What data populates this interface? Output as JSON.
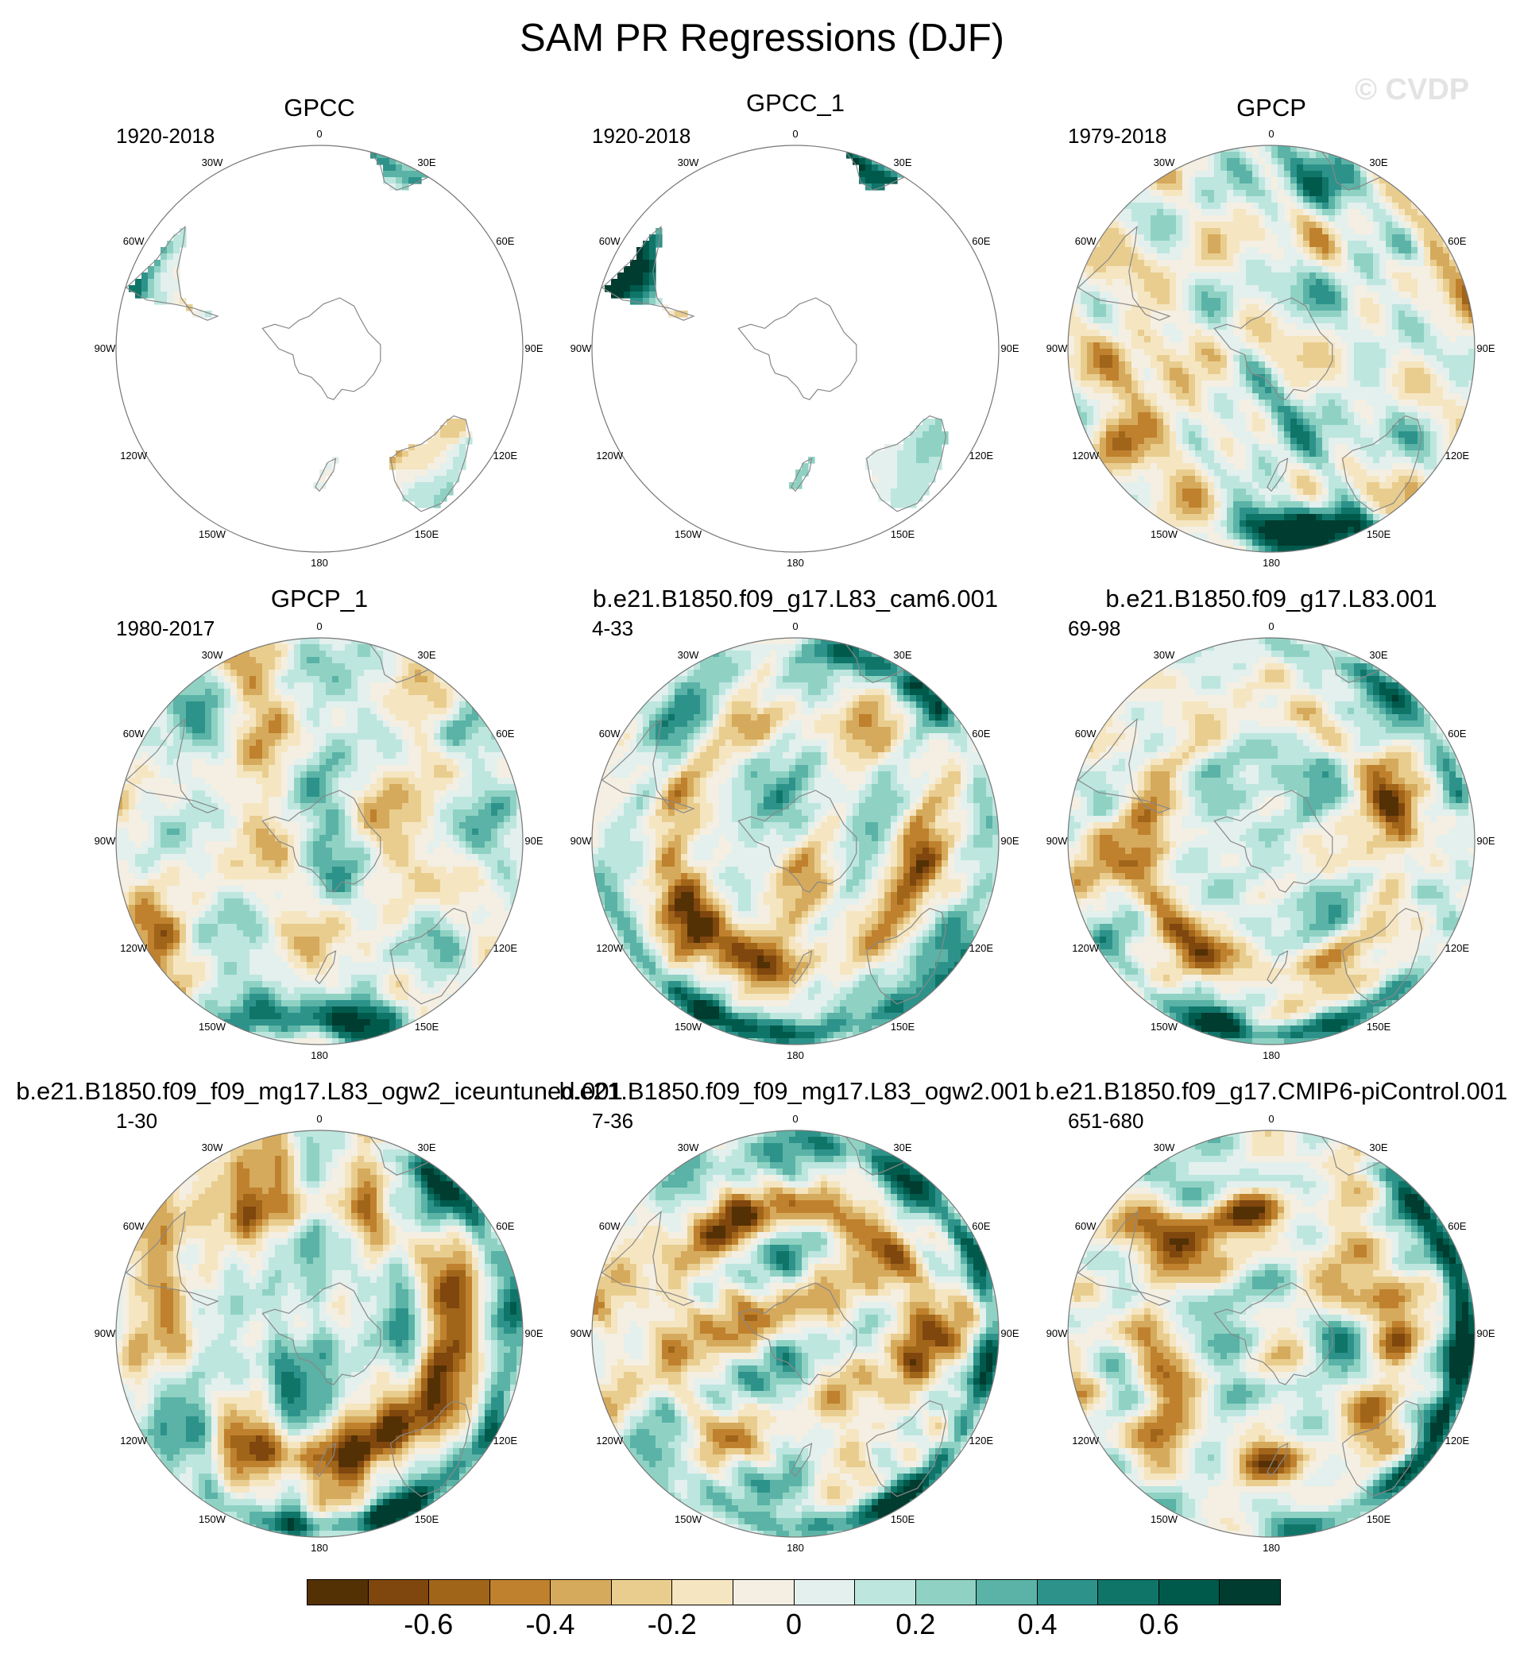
{
  "title": "SAM PR Regressions (DJF)",
  "watermark": "© CVDP",
  "colors": {
    "land_outline": "#888888",
    "globe_outline": "#777777",
    "background_missing": "#ffffff"
  },
  "panels": [
    {
      "title": "GPCC",
      "period": "1920-2018",
      "coverage": "land-only"
    },
    {
      "title": "GPCC_1",
      "period": "1920-2018",
      "coverage": "land-only"
    },
    {
      "title": "GPCP",
      "period": "1979-2018",
      "coverage": "global"
    },
    {
      "title": "GPCP_1",
      "period": "1980-2017",
      "coverage": "global"
    },
    {
      "title": "b.e21.B1850.f09_g17.L83_cam6.001",
      "period": "4-33",
      "coverage": "global"
    },
    {
      "title": "b.e21.B1850.f09_g17.L83.001",
      "period": "69-98",
      "coverage": "global"
    },
    {
      "title": "b.e21.B1850.f09_f09_mg17.L83_ogw2_iceuntuned.001",
      "period": "1-30",
      "coverage": "global"
    },
    {
      "title": "b.e21.B1850.f09_f09_mg17.L83_ogw2.001",
      "period": "7-36",
      "coverage": "global"
    },
    {
      "title": "b.e21.B1850.f09_g17.CMIP6-piControl.001",
      "period": "651-680",
      "coverage": "global"
    }
  ],
  "longitude_labels": [
    {
      "lon": 0,
      "text": "0"
    },
    {
      "lon": 30,
      "text": "30E"
    },
    {
      "lon": 60,
      "text": "60E"
    },
    {
      "lon": 90,
      "text": "90E"
    },
    {
      "lon": 120,
      "text": "120E"
    },
    {
      "lon": 150,
      "text": "150E"
    },
    {
      "lon": 180,
      "text": "180"
    },
    {
      "lon": -150,
      "text": "150W"
    },
    {
      "lon": -120,
      "text": "120W"
    },
    {
      "lon": -90,
      "text": "90W"
    },
    {
      "lon": -60,
      "text": "60W"
    },
    {
      "lon": -30,
      "text": "30W"
    }
  ],
  "colorbar": {
    "colors": [
      "#543005",
      "#7f470e",
      "#a1651a",
      "#bf812d",
      "#d6aa5c",
      "#e9cd8f",
      "#f5e6c1",
      "#f4efe2",
      "#e3f0ed",
      "#bde6df",
      "#8fd2c4",
      "#5ab3a6",
      "#2d938a",
      "#107569",
      "#005a4c",
      "#003c30"
    ],
    "levels": [
      -0.7,
      -0.6,
      -0.5,
      -0.4,
      -0.3,
      -0.2,
      -0.1,
      0,
      0.1,
      0.2,
      0.3,
      0.4,
      0.5,
      0.6,
      0.7
    ],
    "tick_labels": [
      {
        "value": -0.6,
        "text": "-0.6"
      },
      {
        "value": -0.4,
        "text": "-0.4"
      },
      {
        "value": -0.2,
        "text": "-0.2"
      },
      {
        "value": 0,
        "text": "0"
      },
      {
        "value": 0.2,
        "text": "0.2"
      },
      {
        "value": 0.4,
        "text": "0.4"
      },
      {
        "value": 0.6,
        "text": "0.6"
      }
    ]
  }
}
